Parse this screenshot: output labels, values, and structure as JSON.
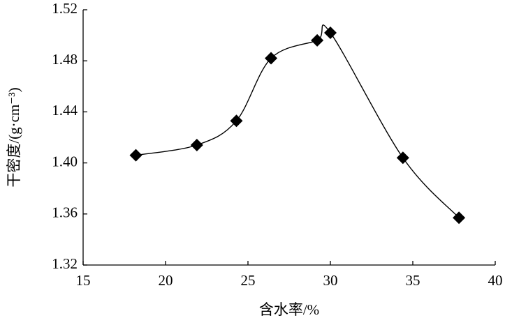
{
  "chart_data": {
    "type": "line",
    "x_label": "含水率/%",
    "y_label": "干密度/(g·cm⁻³)",
    "x": [
      18.2,
      21.9,
      24.3,
      26.4,
      29.2,
      30.0,
      34.4,
      37.8
    ],
    "series": [
      {
        "color": "#000000",
        "values": [
          1.406,
          1.414,
          1.433,
          1.482,
          1.496,
          1.502,
          1.404,
          1.357
        ]
      }
    ],
    "xlim": [
      15,
      40
    ],
    "xticks": [
      15,
      20,
      25,
      30,
      35,
      40
    ],
    "ylim": [
      1.32,
      1.52
    ],
    "yticks": [
      1.32,
      1.36,
      {
        "value": 1.4,
        "label": "1.40"
      },
      1.44,
      1.48,
      1.52
    ],
    "smooth": true,
    "marker": "diamond"
  }
}
